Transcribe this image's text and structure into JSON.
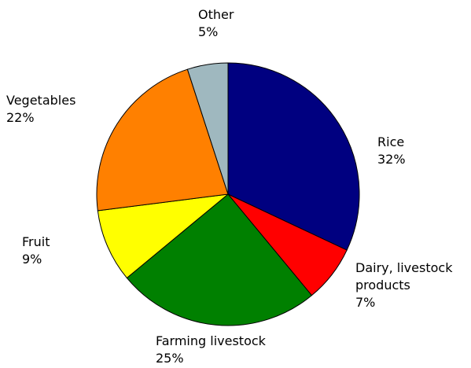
{
  "chart_data": {
    "type": "pie",
    "categories": [
      "Rice",
      "Dairy, livestock products",
      "Farming livestock",
      "Fruit",
      "Vegetables",
      "Other"
    ],
    "values": [
      32,
      7,
      25,
      9,
      22,
      5
    ],
    "value_labels": [
      "32%",
      "7%",
      "25%",
      "9%",
      "22%",
      "5%"
    ],
    "colors": [
      "#000080",
      "#ff0000",
      "#008000",
      "#ffff00",
      "#ff8000",
      "#9fb8bf"
    ]
  }
}
